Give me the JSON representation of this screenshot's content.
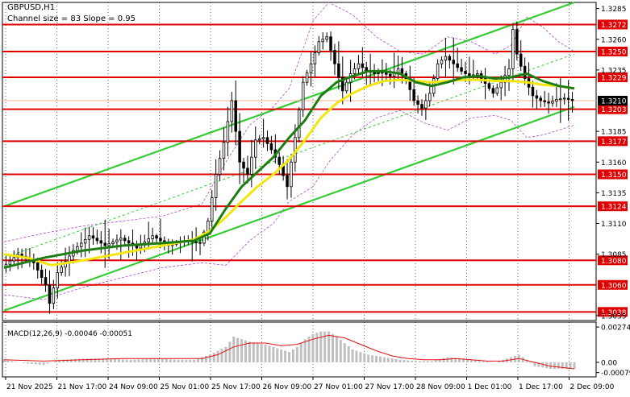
{
  "chart_data": {
    "type": "candlestick",
    "title": "GBPUSD,H1",
    "subtitle": "Channel size = 83 Slope = 0.95",
    "y_ticks": [
      "1.3285",
      "1.3260",
      "1.3235",
      "1.3185",
      "1.3160",
      "1.3135",
      "1.3110",
      "1.3085",
      "1.3035"
    ],
    "y_range": [
      1.3031,
      1.329
    ],
    "x_ticks": [
      "21 Nov 2025",
      "21 Nov 17:00",
      "24 Nov 09:00",
      "25 Nov 01:00",
      "25 Nov 17:00",
      "26 Nov 09:00",
      "27 Nov 01:00",
      "27 Nov 17:00",
      "28 Nov 09:00",
      "1 Dec 01:00",
      "1 Dec 17:00",
      "2 Dec 09:00"
    ],
    "current_price": "1.3210",
    "levels": [
      {
        "value": 1.3272,
        "label": "1.3272"
      },
      {
        "value": 1.325,
        "label": "1.3250"
      },
      {
        "value": 1.3229,
        "label": "1.3229"
      },
      {
        "value": 1.3203,
        "label": "1.3203"
      },
      {
        "value": 1.3177,
        "label": "1.3177"
      },
      {
        "value": 1.315,
        "label": "1.3150"
      },
      {
        "value": 1.3124,
        "label": "1.3124"
      },
      {
        "value": 1.308,
        "label": "1.3080"
      },
      {
        "value": 1.306,
        "label": "1.3060"
      },
      {
        "value": 1.3038,
        "label": "1.3038"
      }
    ],
    "price_path": [
      [
        0,
        1.3074
      ],
      [
        4,
        1.3085
      ],
      [
        8,
        1.3078
      ],
      [
        11,
        1.306
      ],
      [
        12,
        1.3045
      ],
      [
        14,
        1.307
      ],
      [
        18,
        1.3088
      ],
      [
        22,
        1.31
      ],
      [
        26,
        1.3092
      ],
      [
        30,
        1.3098
      ],
      [
        34,
        1.309
      ],
      [
        38,
        1.31
      ],
      [
        42,
        1.3092
      ],
      [
        46,
        1.3096
      ],
      [
        50,
        1.3094
      ],
      [
        52,
        1.3112
      ],
      [
        54,
        1.315
      ],
      [
        56,
        1.3176
      ],
      [
        58,
        1.321
      ],
      [
        60,
        1.316
      ],
      [
        62,
        1.315
      ],
      [
        64,
        1.3178
      ],
      [
        66,
        1.318
      ],
      [
        68,
        1.317
      ],
      [
        70,
        1.3158
      ],
      [
        72,
        1.314
      ],
      [
        74,
        1.318
      ],
      [
        76,
        1.3225
      ],
      [
        78,
        1.324
      ],
      [
        80,
        1.3258
      ],
      [
        82,
        1.3262
      ],
      [
        84,
        1.324
      ],
      [
        86,
        1.3218
      ],
      [
        88,
        1.3232
      ],
      [
        90,
        1.324
      ],
      [
        92,
        1.3234
      ],
      [
        94,
        1.3232
      ],
      [
        96,
        1.3233
      ],
      [
        98,
        1.323
      ],
      [
        100,
        1.3236
      ],
      [
        102,
        1.3228
      ],
      [
        104,
        1.321
      ],
      [
        106,
        1.3204
      ],
      [
        108,
        1.3216
      ],
      [
        110,
        1.324
      ],
      [
        112,
        1.3246
      ],
      [
        114,
        1.324
      ],
      [
        116,
        1.3234
      ],
      [
        118,
        1.323
      ],
      [
        120,
        1.3232
      ],
      [
        122,
        1.3224
      ],
      [
        124,
        1.3216
      ],
      [
        126,
        1.3225
      ],
      [
        128,
        1.3236
      ],
      [
        129,
        1.3268
      ],
      [
        130,
        1.3248
      ],
      [
        132,
        1.3228
      ],
      [
        134,
        1.3214
      ],
      [
        136,
        1.321
      ],
      [
        138,
        1.3208
      ],
      [
        140,
        1.3211
      ],
      [
        142,
        1.3212
      ],
      [
        144,
        1.321
      ]
    ],
    "ma_green": [
      [
        0,
        1.3074
      ],
      [
        10,
        1.3082
      ],
      [
        20,
        1.3088
      ],
      [
        30,
        1.3092
      ],
      [
        40,
        1.3094
      ],
      [
        48,
        1.3096
      ],
      [
        52,
        1.3102
      ],
      [
        56,
        1.3122
      ],
      [
        60,
        1.314
      ],
      [
        64,
        1.3152
      ],
      [
        68,
        1.3164
      ],
      [
        72,
        1.318
      ],
      [
        76,
        1.3194
      ],
      [
        80,
        1.3214
      ],
      [
        84,
        1.3225
      ],
      [
        88,
        1.323
      ],
      [
        92,
        1.3234
      ],
      [
        96,
        1.3234
      ],
      [
        100,
        1.3232
      ],
      [
        104,
        1.3225
      ],
      [
        108,
        1.3222
      ],
      [
        112,
        1.3225
      ],
      [
        116,
        1.3229
      ],
      [
        120,
        1.323
      ],
      [
        124,
        1.3228
      ],
      [
        128,
        1.3229
      ],
      [
        132,
        1.3232
      ],
      [
        136,
        1.3226
      ],
      [
        140,
        1.3222
      ],
      [
        144,
        1.322
      ]
    ],
    "ma_yellow": [
      [
        0,
        1.3085
      ],
      [
        6,
        1.3082
      ],
      [
        12,
        1.3076
      ],
      [
        20,
        1.308
      ],
      [
        30,
        1.3086
      ],
      [
        40,
        1.3092
      ],
      [
        48,
        1.3097
      ],
      [
        52,
        1.3104
      ],
      [
        56,
        1.3115
      ],
      [
        60,
        1.3128
      ],
      [
        64,
        1.314
      ],
      [
        68,
        1.315
      ],
      [
        72,
        1.3162
      ],
      [
        76,
        1.3178
      ],
      [
        80,
        1.3196
      ],
      [
        84,
        1.3208
      ],
      [
        88,
        1.3216
      ],
      [
        92,
        1.3222
      ],
      [
        96,
        1.3226
      ],
      [
        100,
        1.3227
      ],
      [
        104,
        1.3226
      ],
      [
        108,
        1.3225
      ],
      [
        112,
        1.3226
      ],
      [
        116,
        1.3227
      ],
      [
        120,
        1.3227
      ],
      [
        124,
        1.3226
      ],
      [
        128,
        1.3226
      ],
      [
        132,
        1.3225
      ],
      [
        136,
        1.3223
      ],
      [
        140,
        1.3222
      ],
      [
        144,
        1.322
      ]
    ],
    "bollinger_upper": [
      [
        0,
        1.3095
      ],
      [
        10,
        1.3102
      ],
      [
        20,
        1.3108
      ],
      [
        30,
        1.3112
      ],
      [
        40,
        1.3116
      ],
      [
        50,
        1.3126
      ],
      [
        56,
        1.316
      ],
      [
        62,
        1.319
      ],
      [
        68,
        1.3205
      ],
      [
        72,
        1.322
      ],
      [
        78,
        1.3275
      ],
      [
        82,
        1.329
      ],
      [
        88,
        1.328
      ],
      [
        94,
        1.3262
      ],
      [
        100,
        1.325
      ],
      [
        106,
        1.3248
      ],
      [
        112,
        1.3262
      ],
      [
        118,
        1.3258
      ],
      [
        124,
        1.3248
      ],
      [
        128,
        1.3255
      ],
      [
        132,
        1.3278
      ],
      [
        136,
        1.327
      ],
      [
        140,
        1.3258
      ],
      [
        144,
        1.325
      ]
    ],
    "bollinger_lower": [
      [
        0,
        1.3052
      ],
      [
        10,
        1.3048
      ],
      [
        20,
        1.3058
      ],
      [
        30,
        1.3066
      ],
      [
        40,
        1.3074
      ],
      [
        50,
        1.3078
      ],
      [
        56,
        1.3076
      ],
      [
        62,
        1.3096
      ],
      [
        68,
        1.311
      ],
      [
        72,
        1.3128
      ],
      [
        78,
        1.314
      ],
      [
        82,
        1.316
      ],
      [
        88,
        1.3182
      ],
      [
        94,
        1.3196
      ],
      [
        100,
        1.3202
      ],
      [
        106,
        1.3192
      ],
      [
        112,
        1.3186
      ],
      [
        118,
        1.3196
      ],
      [
        124,
        1.3198
      ],
      [
        128,
        1.3194
      ],
      [
        132,
        1.318
      ],
      [
        136,
        1.3182
      ],
      [
        140,
        1.3186
      ],
      [
        144,
        1.319
      ]
    ],
    "channel_upper": [
      [
        0,
        1.3124
      ],
      [
        144,
        1.329
      ]
    ],
    "channel_mid": [
      [
        0,
        1.3082
      ],
      [
        144,
        1.3248
      ]
    ],
    "channel_lower": [
      [
        0,
        1.3039
      ],
      [
        144,
        1.3205
      ]
    ],
    "macd": {
      "label": "MACD(12,26,9) -0.00046 -0.00051",
      "y_ticks": [
        "0.00274",
        "0.00",
        "-0.00079"
      ],
      "y_range": [
        -0.001,
        0.003
      ],
      "histogram": [
        [
          0,
          0.0002
        ],
        [
          6,
          -0.0001
        ],
        [
          10,
          -0.0002
        ],
        [
          14,
          0.0002
        ],
        [
          20,
          0.0003
        ],
        [
          26,
          0.0003
        ],
        [
          32,
          0.0002
        ],
        [
          38,
          0.0003
        ],
        [
          44,
          0.0002
        ],
        [
          48,
          0.0002
        ],
        [
          52,
          0.0006
        ],
        [
          56,
          0.0012
        ],
        [
          58,
          0.002
        ],
        [
          60,
          0.0018
        ],
        [
          62,
          0.0016
        ],
        [
          66,
          0.0014
        ],
        [
          70,
          0.001
        ],
        [
          72,
          0.0008
        ],
        [
          74,
          0.0012
        ],
        [
          76,
          0.0018
        ],
        [
          78,
          0.0022
        ],
        [
          80,
          0.0024
        ],
        [
          82,
          0.0024
        ],
        [
          84,
          0.002
        ],
        [
          88,
          0.001
        ],
        [
          92,
          0.0006
        ],
        [
          96,
          0.0004
        ],
        [
          100,
          0.0002
        ],
        [
          104,
          0.0001
        ],
        [
          108,
          0.0001
        ],
        [
          112,
          0.0004
        ],
        [
          116,
          0.0003
        ],
        [
          120,
          0.0001
        ],
        [
          124,
          0.0
        ],
        [
          128,
          0.0004
        ],
        [
          130,
          0.0006
        ],
        [
          132,
          0.0002
        ],
        [
          134,
          -0.0003
        ],
        [
          138,
          -0.0005
        ],
        [
          142,
          -0.0005
        ],
        [
          144,
          -0.0005
        ]
      ],
      "signal": [
        [
          0,
          0.0002
        ],
        [
          10,
          0.0001
        ],
        [
          20,
          0.0002
        ],
        [
          30,
          0.0003
        ],
        [
          40,
          0.0003
        ],
        [
          50,
          0.0003
        ],
        [
          54,
          0.0006
        ],
        [
          58,
          0.0012
        ],
        [
          62,
          0.0015
        ],
        [
          66,
          0.0015
        ],
        [
          70,
          0.0013
        ],
        [
          74,
          0.0014
        ],
        [
          78,
          0.0018
        ],
        [
          82,
          0.0021
        ],
        [
          86,
          0.0019
        ],
        [
          90,
          0.0014
        ],
        [
          94,
          0.0009
        ],
        [
          98,
          0.0005
        ],
        [
          102,
          0.0003
        ],
        [
          106,
          0.0002
        ],
        [
          110,
          0.0002
        ],
        [
          114,
          0.0003
        ],
        [
          118,
          0.0002
        ],
        [
          122,
          0.0001
        ],
        [
          126,
          0.0001
        ],
        [
          130,
          0.0003
        ],
        [
          134,
          0.0
        ],
        [
          138,
          -0.0003
        ],
        [
          144,
          -0.0005
        ]
      ]
    },
    "colors": {
      "candle": "#000000",
      "level_line": "#e00000",
      "level_label_bg": "#e00000",
      "ma_green": "#1e7d12",
      "ma_yellow": "#f2e60c",
      "bollinger": "#b04ad0",
      "channel": "#33cc33",
      "current_price_line": "#f0b090",
      "macd_histogram": "#c0c0c0",
      "macd_signal": "#e01010"
    }
  }
}
